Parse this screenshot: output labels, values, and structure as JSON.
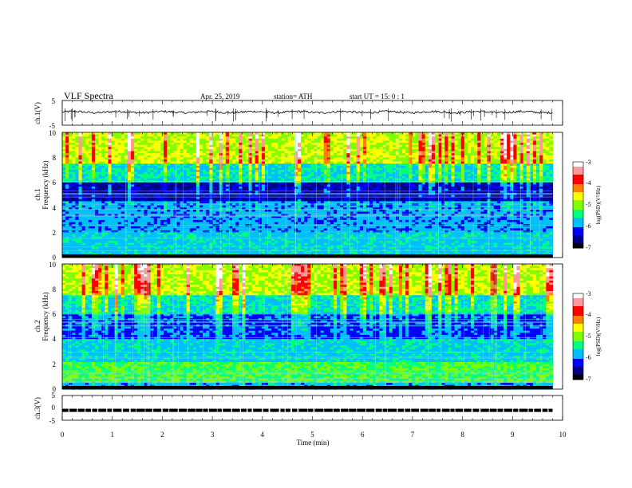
{
  "header": {
    "title": "VLF  Spectra",
    "date": "Apr. 25, 2019",
    "station": "station= ATH",
    "start_ut": "start  UT  =   15: 0  : 1"
  },
  "chart_data": [
    {
      "type": "line",
      "ylabel": "ch.1(V)",
      "ylim": [
        -5,
        5
      ],
      "yticks": [
        "5",
        "-5"
      ],
      "xlim": [
        0,
        10
      ],
      "description_baseline": 0.3
    },
    {
      "type": "heatmap",
      "ylabel_top": "ch.1",
      "ylabel_bottom": "Frequency  (kHz)",
      "ylim": [
        0,
        10
      ],
      "yticks": [
        "0",
        "2",
        "4",
        "6",
        "8",
        "10"
      ],
      "xlim": [
        0,
        10
      ],
      "data_xmax": 9.8,
      "colorbar": {
        "label": "log(PSD)(V²/Hz)",
        "ticks": [
          "-3",
          "-4",
          "-5",
          "-6",
          "-7"
        ],
        "range": [
          -7,
          -3
        ]
      }
    },
    {
      "type": "heatmap",
      "ylabel_top": "ch.2",
      "ylabel_bottom": "Frequency  (kHz)",
      "ylim": [
        0,
        10
      ],
      "yticks": [
        "0",
        "2",
        "4",
        "6",
        "8",
        "10"
      ],
      "xlim": [
        0,
        10
      ],
      "data_xmax": 9.8,
      "colorbar": {
        "label": "log(PSD)(V²/Hz)",
        "ticks": [
          "-3",
          "-4",
          "-5",
          "-6",
          "-7"
        ],
        "range": [
          -7,
          -3
        ]
      }
    },
    {
      "type": "line",
      "ylabel": "ch.3(V)",
      "ylim": [
        -5,
        5
      ],
      "yticks": [
        "5",
        "0",
        "-5"
      ],
      "xlim": [
        0,
        10
      ],
      "level": -1
    }
  ],
  "xaxis": {
    "label": "Time  (min)",
    "ticks": [
      "0",
      "1",
      "2",
      "3",
      "4",
      "5",
      "6",
      "7",
      "8",
      "9",
      "10"
    ]
  },
  "colors": {
    "colormap": [
      "#000000",
      "#00008b",
      "#0000ff",
      "#00bfff",
      "#00ff7f",
      "#7fff00",
      "#ffff00",
      "#ff7f00",
      "#ff0000",
      "#ff9999",
      "#ffffff"
    ]
  }
}
